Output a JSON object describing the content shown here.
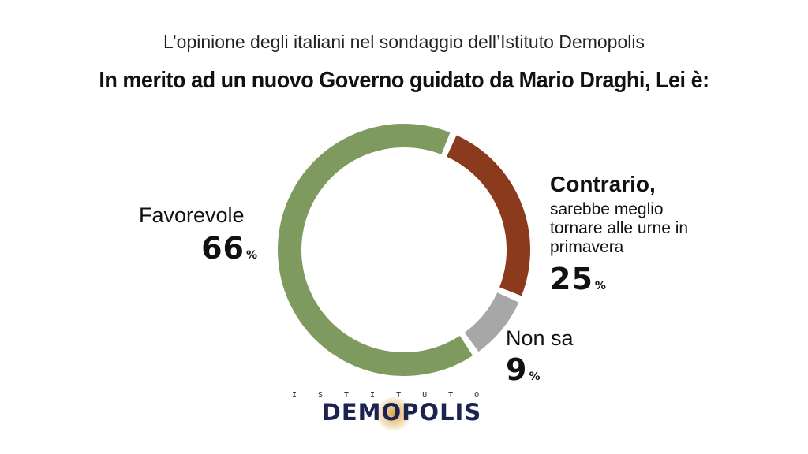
{
  "subtitle": "L’opinione degli italiani nel sondaggio dell’Istituto Demopolis",
  "title": "In merito ad un nuovo Governo guidato da Mario Draghi, Lei è:",
  "chart_data": {
    "type": "pie",
    "donut": true,
    "categories": [
      "Favorevole",
      "Contrario,",
      "Non sa"
    ],
    "values": [
      66,
      25,
      9
    ],
    "unit": "%",
    "colors": [
      "#7f9a5f",
      "#8b3a1d",
      "#a7a7a7"
    ],
    "sublabels": [
      "",
      "sarebbe meglio tornare alle urne in primavera",
      ""
    ],
    "legend": "none"
  },
  "logo": {
    "top_text": "ISTITUTO",
    "main_text": "DEMOPOLIS"
  }
}
